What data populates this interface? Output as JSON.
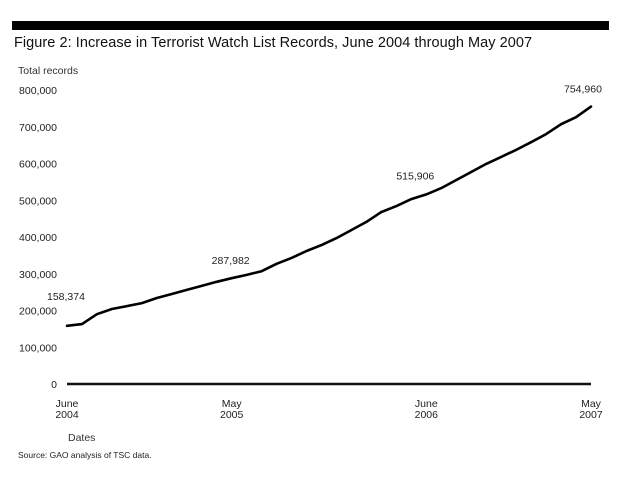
{
  "header": {
    "title": "Figure 2: Increase in Terrorist Watch List Records, June 2004 through May 2007"
  },
  "footer": {
    "source": "Source: GAO analysis of TSC data."
  },
  "chart_data": {
    "type": "line",
    "title": "Figure 2: Increase in Terrorist Watch List Records, June 2004 through May 2007",
    "ylabel": "Total records",
    "xlabel": "Dates",
    "ylim": [
      0,
      800000
    ],
    "yticks": [
      0,
      100000,
      200000,
      300000,
      400000,
      500000,
      600000,
      700000,
      800000
    ],
    "ytick_labels": [
      "0",
      "100,000",
      "200,000",
      "300,000",
      "400,000",
      "500,000",
      "600,000",
      "700,000",
      "800,000"
    ],
    "xlim_months": [
      0,
      35
    ],
    "xticks": [
      {
        "month_index": 0,
        "line1": "June",
        "line2": "2004"
      },
      {
        "month_index": 11,
        "line1": "May",
        "line2": "2005"
      },
      {
        "month_index": 24,
        "line1": "June",
        "line2": "2006"
      },
      {
        "month_index": 35,
        "line1": "May",
        "line2": "2007"
      }
    ],
    "grid": false,
    "series": [
      {
        "name": "Total records",
        "color": "#000000",
        "values": [
          158374,
          163000,
          190000,
          204000,
          212000,
          220000,
          234000,
          245000,
          256000,
          267000,
          278000,
          287982,
          297000,
          307000,
          327000,
          343000,
          362000,
          378000,
          397000,
          419000,
          441000,
          468000,
          484000,
          503000,
          515906,
          533000,
          555000,
          577000,
          599000,
          618000,
          637000,
          658000,
          680000,
          707000,
          726000,
          754960
        ]
      }
    ],
    "annotations": [
      {
        "month_index": 0,
        "value": 158374,
        "text": "158,374"
      },
      {
        "month_index": 11,
        "value": 287982,
        "text": "287,982"
      },
      {
        "month_index": 24,
        "value": 515906,
        "text": "515,906"
      },
      {
        "month_index": 35,
        "value": 754960,
        "text": "754,960"
      }
    ]
  }
}
